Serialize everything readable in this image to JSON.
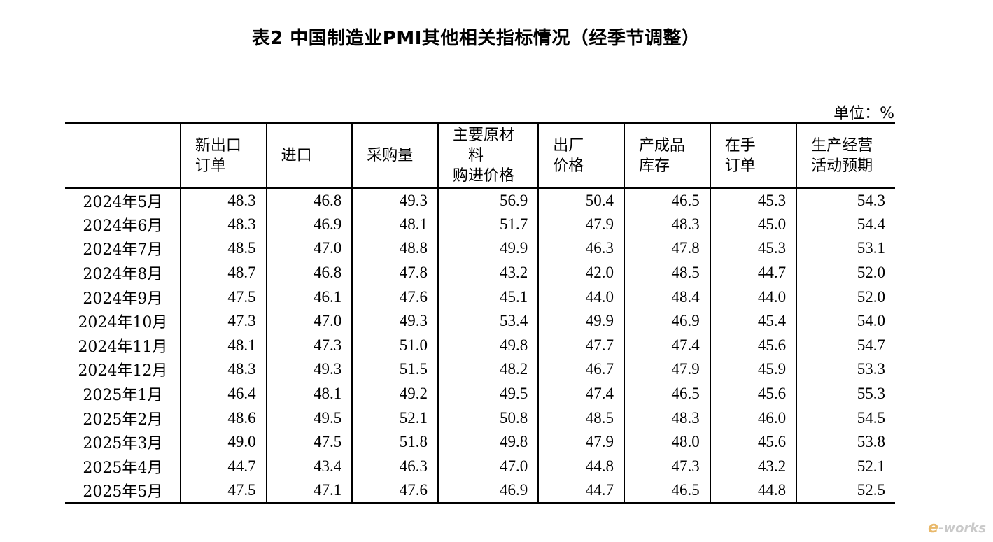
{
  "title": "表2 中国制造业PMI其他相关指标情况（经季节调整）",
  "unit": "单位：%",
  "columns": [
    {
      "lines": [
        ""
      ]
    },
    {
      "lines": [
        "新出口",
        "订单"
      ]
    },
    {
      "lines": [
        "进口"
      ]
    },
    {
      "lines": [
        "采购量"
      ]
    },
    {
      "lines": [
        "主要原材",
        "料",
        "购进价格"
      ]
    },
    {
      "lines": [
        "出厂",
        "价格"
      ]
    },
    {
      "lines": [
        "产成品",
        "库存"
      ]
    },
    {
      "lines": [
        "在手",
        "订单"
      ]
    },
    {
      "lines": [
        "生产经营",
        "活动预期"
      ]
    }
  ],
  "rows": [
    [
      "2024年5月",
      "48.3",
      "46.8",
      "49.3",
      "56.9",
      "50.4",
      "46.5",
      "45.3",
      "54.3"
    ],
    [
      "2024年6月",
      "48.3",
      "46.9",
      "48.1",
      "51.7",
      "47.9",
      "48.3",
      "45.0",
      "54.4"
    ],
    [
      "2024年7月",
      "48.5",
      "47.0",
      "48.8",
      "49.9",
      "46.3",
      "47.8",
      "45.3",
      "53.1"
    ],
    [
      "2024年8月",
      "48.7",
      "46.8",
      "47.8",
      "43.2",
      "42.0",
      "48.5",
      "44.7",
      "52.0"
    ],
    [
      "2024年9月",
      "47.5",
      "46.1",
      "47.6",
      "45.1",
      "44.0",
      "48.4",
      "44.0",
      "52.0"
    ],
    [
      "2024年10月",
      "47.3",
      "47.0",
      "49.3",
      "53.4",
      "49.9",
      "46.9",
      "45.4",
      "54.0"
    ],
    [
      "2024年11月",
      "48.1",
      "47.3",
      "51.0",
      "49.8",
      "47.7",
      "47.4",
      "45.6",
      "54.7"
    ],
    [
      "2024年12月",
      "48.3",
      "49.3",
      "51.5",
      "48.2",
      "46.7",
      "47.9",
      "45.9",
      "53.3"
    ],
    [
      "2025年1月",
      "46.4",
      "48.1",
      "49.2",
      "49.5",
      "47.4",
      "46.5",
      "45.6",
      "55.3"
    ],
    [
      "2025年2月",
      "48.6",
      "49.5",
      "52.1",
      "50.8",
      "48.5",
      "48.3",
      "46.0",
      "54.5"
    ],
    [
      "2025年3月",
      "49.0",
      "47.5",
      "51.8",
      "49.8",
      "47.9",
      "48.0",
      "45.6",
      "53.8"
    ],
    [
      "2025年4月",
      "44.7",
      "43.4",
      "46.3",
      "47.0",
      "44.8",
      "47.3",
      "43.2",
      "52.1"
    ],
    [
      "2025年5月",
      "47.5",
      "47.1",
      "47.6",
      "46.9",
      "44.7",
      "46.5",
      "44.8",
      "52.5"
    ]
  ],
  "logo": {
    "first": "e",
    "rest": "-works"
  }
}
